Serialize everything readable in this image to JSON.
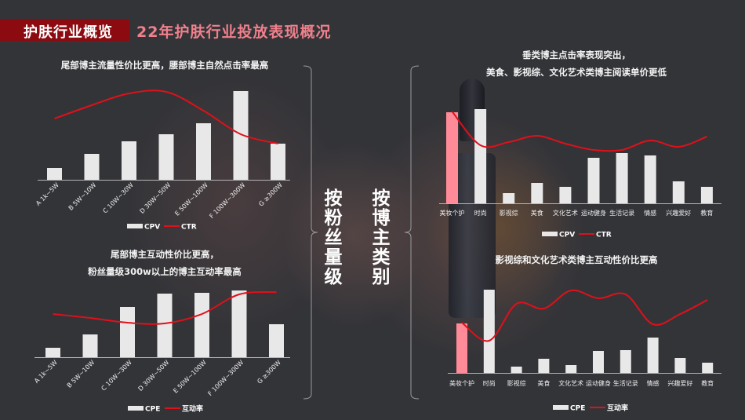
{
  "header": {
    "section_label": "护肤行业概览",
    "title": "22年护肤行业投放表现概况"
  },
  "side_labels": {
    "left": "按粉丝量级",
    "right": "按博主类别"
  },
  "colors": {
    "banner": "#8b0b10",
    "title": "#f0808c",
    "bar": "#e8e8e8",
    "highlight_bar": "#ff8b98",
    "line": "#e0101a",
    "background": "#333438"
  },
  "chart_data": [
    {
      "id": "fans_cpv_ctr",
      "type": "bar",
      "title": "尾部博主流量性价比更高，腰部博主自然点击率最高",
      "categories": [
        "A 1k~5W",
        "B 5W~10W",
        "C 10W~30W",
        "D 30W~50W",
        "E 50W~100W",
        "F 100W~300W",
        "G ≥300W"
      ],
      "series": [
        {
          "name": "CPV",
          "type": "bar",
          "values": [
            15,
            33,
            49,
            58,
            72,
            113,
            46
          ]
        },
        {
          "name": "CTR",
          "type": "line",
          "values": [
            78,
            95,
            110,
            112,
            88,
            58,
            46
          ]
        }
      ],
      "legend": [
        "CPV",
        "CTR"
      ],
      "legend_position": "bottom",
      "grid": false,
      "ylim": [
        0,
        120
      ]
    },
    {
      "id": "fans_cpe_interaction",
      "type": "bar",
      "title": "尾部博主互动性价比更高，\n粉丝量级300w以上的博主互动率最高",
      "title_lines": [
        "尾部博主互动性价比更高，",
        "粉丝量级300w以上的博主互动率最高"
      ],
      "categories": [
        "A 1k~5W",
        "B 5W~10W",
        "C 10W~30W",
        "D 30W~50W",
        "E 50W~100W",
        "F 100W~300W",
        "G ≥300W"
      ],
      "series": [
        {
          "name": "CPE",
          "type": "bar",
          "values": [
            12,
            29,
            64,
            81,
            82,
            85,
            42
          ]
        },
        {
          "name": "互动率",
          "type": "line",
          "values": [
            55,
            50,
            44,
            43,
            55,
            80,
            83
          ]
        }
      ],
      "legend": [
        "CPE",
        "互动率"
      ],
      "legend_position": "bottom",
      "grid": false,
      "ylim": [
        0,
        90
      ]
    },
    {
      "id": "category_cpv_ctr",
      "type": "bar",
      "title": "垂类博主点击率表现突出，\n美食、影视综、文化艺术类博主阅读单价更低",
      "title_lines": [
        "垂类博主点击率表现突出，",
        "美食、影视综、文化艺术类博主阅读单价更低"
      ],
      "categories": [
        "美妆个护",
        "时尚",
        "影视综",
        "美食",
        "文化艺术",
        "运动健身",
        "生活记录",
        "情感",
        "兴趣爱好",
        "教育"
      ],
      "highlight_index": 0,
      "series": [
        {
          "name": "CPV",
          "type": "bar",
          "values": [
            116,
            120,
            13,
            26,
            21,
            58,
            64,
            61,
            28,
            21
          ]
        },
        {
          "name": "CTR",
          "type": "line",
          "values": [
            117,
            74,
            78,
            86,
            76,
            68,
            68,
            80,
            72,
            85
          ]
        }
      ],
      "legend": [
        "CPV",
        "CTR"
      ],
      "legend_position": "bottom",
      "grid": false,
      "ylim": [
        0,
        125
      ]
    },
    {
      "id": "category_cpe_interaction",
      "type": "bar",
      "title": "影视综和文化艺术类博主互动性价比更高",
      "categories": [
        "美妆个护",
        "时尚",
        "影视综",
        "美食",
        "文化艺术",
        "运动健身",
        "生活记录",
        "情感",
        "兴趣爱好",
        "教育"
      ],
      "highlight_index": 0,
      "series": [
        {
          "name": "CPE",
          "type": "bar",
          "values": [
            63,
            106,
            8,
            18,
            10,
            28,
            29,
            45,
            19,
            13
          ]
        },
        {
          "name": "互动率",
          "type": "line",
          "values": [
            64,
            41,
            88,
            82,
            105,
            95,
            100,
            62,
            75,
            93
          ]
        }
      ],
      "legend": [
        "CPE",
        "互动率"
      ],
      "legend_position": "bottom",
      "grid": false,
      "ylim": [
        0,
        110
      ]
    }
  ]
}
